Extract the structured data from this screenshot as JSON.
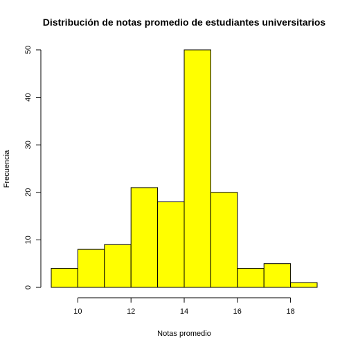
{
  "chart_data": {
    "type": "bar",
    "title": "Distribución de notas promedio de estudiantes universitarios",
    "xlabel": "Notas promedio",
    "ylabel": "Frecuencia",
    "bins": [
      {
        "from": 9,
        "to": 10,
        "count": 4
      },
      {
        "from": 10,
        "to": 11,
        "count": 8
      },
      {
        "from": 11,
        "to": 12,
        "count": 9
      },
      {
        "from": 12,
        "to": 13,
        "count": 21
      },
      {
        "from": 13,
        "to": 14,
        "count": 18
      },
      {
        "from": 14,
        "to": 15,
        "count": 50
      },
      {
        "from": 15,
        "to": 16,
        "count": 20
      },
      {
        "from": 16,
        "to": 17,
        "count": 4
      },
      {
        "from": 17,
        "to": 18,
        "count": 5
      },
      {
        "from": 18,
        "to": 19,
        "count": 1
      }
    ],
    "xlim": [
      9,
      19
    ],
    "ylim": [
      0,
      50
    ],
    "xticks": [
      10,
      12,
      14,
      16,
      18
    ],
    "yticks": [
      0,
      10,
      20,
      30,
      40,
      50
    ],
    "grid": false,
    "bar_color": "#ffff00",
    "edge_color": "#000000"
  }
}
